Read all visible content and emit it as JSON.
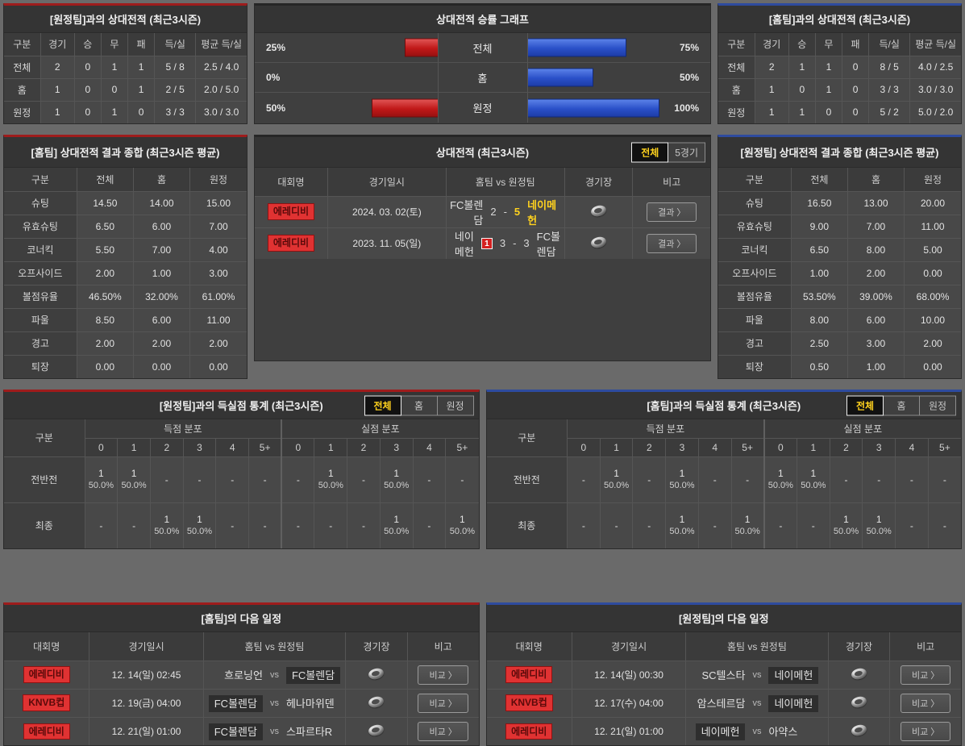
{
  "colors": {
    "accent_red": "#9e1c1c",
    "accent_blue": "#2e4b9e",
    "bar_red": "#c01818",
    "bar_blue": "#2a50c8",
    "highlight_yellow": "#ffd21e",
    "league_badge_red": "#e03232"
  },
  "labels": {
    "vs": "vs",
    "chevron": "〉",
    "empty": "-"
  },
  "chart_data": {
    "type": "bar",
    "title": "상대전적 승률 그래프",
    "categories": [
      "전체",
      "홈",
      "원정"
    ],
    "series": [
      {
        "name": "red-left-winrate",
        "values": [
          25,
          0,
          50
        ]
      },
      {
        "name": "blue-right-winrate",
        "values": [
          75,
          50,
          100
        ]
      }
    ],
    "unit": "%",
    "xlim": [
      0,
      100
    ],
    "legend": "none",
    "grid": false
  },
  "h2h_away": {
    "title": "[원정팀]과의 상대전적 (최근3시즌)",
    "columns": [
      "구분",
      "경기",
      "승",
      "무",
      "패",
      "득/실",
      "평균 득/실"
    ],
    "rows": [
      [
        "전체",
        "2",
        "0",
        "1",
        "1",
        "5 / 8",
        "2.5 / 4.0"
      ],
      [
        "홈",
        "1",
        "0",
        "0",
        "1",
        "2 / 5",
        "2.0 / 5.0"
      ],
      [
        "원정",
        "1",
        "0",
        "1",
        "0",
        "3 / 3",
        "3.0 / 3.0"
      ]
    ]
  },
  "h2h_home": {
    "title": "[홈팀]과의 상대전적 (최근3시즌)",
    "columns": [
      "구분",
      "경기",
      "승",
      "무",
      "패",
      "득/실",
      "평균 득/실"
    ],
    "rows": [
      [
        "전체",
        "2",
        "1",
        "1",
        "0",
        "8 / 5",
        "4.0 / 2.5"
      ],
      [
        "홈",
        "1",
        "0",
        "1",
        "0",
        "3 / 3",
        "3.0 / 3.0"
      ],
      [
        "원정",
        "1",
        "1",
        "0",
        "0",
        "5 / 2",
        "5.0 / 2.0"
      ]
    ]
  },
  "summary_home": {
    "title": "[홈팀] 상대전적 결과 종합 (최근3시즌 평균)",
    "columns": [
      "구분",
      "전체",
      "홈",
      "원정"
    ],
    "rows": [
      [
        "슈팅",
        "14.50",
        "14.00",
        "15.00"
      ],
      [
        "유효슈팅",
        "6.50",
        "6.00",
        "7.00"
      ],
      [
        "코너킥",
        "5.50",
        "7.00",
        "4.00"
      ],
      [
        "오프사이드",
        "2.00",
        "1.00",
        "3.00"
      ],
      [
        "볼점유율",
        "46.50%",
        "32.00%",
        "61.00%"
      ],
      [
        "파울",
        "8.50",
        "6.00",
        "11.00"
      ],
      [
        "경고",
        "2.00",
        "2.00",
        "2.00"
      ],
      [
        "퇴장",
        "0.00",
        "0.00",
        "0.00"
      ]
    ]
  },
  "summary_away": {
    "title": "[원정팀] 상대전적 결과 종합 (최근3시즌 평균)",
    "columns": [
      "구분",
      "전체",
      "홈",
      "원정"
    ],
    "rows": [
      [
        "슈팅",
        "16.50",
        "13.00",
        "20.00"
      ],
      [
        "유효슈팅",
        "9.00",
        "7.00",
        "11.00"
      ],
      [
        "코너킥",
        "6.50",
        "8.00",
        "5.00"
      ],
      [
        "오프사이드",
        "1.00",
        "2.00",
        "0.00"
      ],
      [
        "볼점유율",
        "53.50%",
        "39.00%",
        "68.00%"
      ],
      [
        "파울",
        "8.00",
        "6.00",
        "10.00"
      ],
      [
        "경고",
        "2.50",
        "3.00",
        "2.00"
      ],
      [
        "퇴장",
        "0.50",
        "1.00",
        "0.00"
      ]
    ]
  },
  "matches": {
    "title": "상대전적 (최근3시즌)",
    "tabs": [
      {
        "label": "전체",
        "active": true
      },
      {
        "label": "5경기",
        "active": false
      }
    ],
    "columns": [
      "대회명",
      "경기일시",
      "홈팀  vs  원정팀",
      "경기장",
      "비고"
    ],
    "button_label": "결과",
    "rows": [
      {
        "league": "에레디비",
        "date": "2024. 03. 02(토)",
        "home": "FC볼렌담",
        "home_card": "",
        "score_home": "2",
        "score_away": "5",
        "away": "네이메헌",
        "away_card": "",
        "winner": "away"
      },
      {
        "league": "에레디비",
        "date": "2023. 11. 05(일)",
        "home": "네이메헌",
        "home_card": "1",
        "score_home": "3",
        "score_away": "3",
        "away": "FC볼렌담",
        "away_card": "",
        "winner": ""
      }
    ]
  },
  "goals_away": {
    "title": "[원정팀]과의 득실점 통계 (최근3시즌)",
    "tabs": [
      {
        "label": "전체",
        "active": true
      },
      {
        "label": "홈",
        "active": false
      },
      {
        "label": "원정",
        "active": false
      }
    ],
    "col_label": "구분",
    "group_scored": "득점 분포",
    "group_conceded": "실점 분포",
    "subcols": [
      "0",
      "1",
      "2",
      "3",
      "4",
      "5+"
    ],
    "rows": [
      {
        "label": "전반전",
        "scored": [
          [
            "1",
            "50.0%"
          ],
          [
            "1",
            "50.0%"
          ],
          "-",
          "-",
          "-",
          "-"
        ],
        "conceded": [
          "-",
          [
            "1",
            "50.0%"
          ],
          "-",
          [
            "1",
            "50.0%"
          ],
          "-",
          "-"
        ]
      },
      {
        "label": "최종",
        "scored": [
          "-",
          "-",
          [
            "1",
            "50.0%"
          ],
          [
            "1",
            "50.0%"
          ],
          "-",
          "-"
        ],
        "conceded": [
          "-",
          "-",
          "-",
          [
            "1",
            "50.0%"
          ],
          "-",
          [
            "1",
            "50.0%"
          ]
        ]
      }
    ]
  },
  "goals_home": {
    "title": "[홈팀]과의 득실점 통계 (최근3시즌)",
    "tabs": [
      {
        "label": "전체",
        "active": true
      },
      {
        "label": "홈",
        "active": false
      },
      {
        "label": "원정",
        "active": false
      }
    ],
    "col_label": "구분",
    "group_scored": "득점 분포",
    "group_conceded": "실점 분포",
    "subcols": [
      "0",
      "1",
      "2",
      "3",
      "4",
      "5+"
    ],
    "rows": [
      {
        "label": "전반전",
        "scored": [
          "-",
          [
            "1",
            "50.0%"
          ],
          "-",
          [
            "1",
            "50.0%"
          ],
          "-",
          "-"
        ],
        "conceded": [
          [
            "1",
            "50.0%"
          ],
          [
            "1",
            "50.0%"
          ],
          "-",
          "-",
          "-",
          "-"
        ]
      },
      {
        "label": "최종",
        "scored": [
          "-",
          "-",
          "-",
          [
            "1",
            "50.0%"
          ],
          "-",
          [
            "1",
            "50.0%"
          ]
        ],
        "conceded": [
          "-",
          "-",
          [
            "1",
            "50.0%"
          ],
          [
            "1",
            "50.0%"
          ],
          "-",
          "-"
        ]
      }
    ]
  },
  "schedule_home": {
    "title": "[홈팀]의 다음 일정",
    "columns": [
      "대회명",
      "경기일시",
      "홈팀  vs  원정팀",
      "경기장",
      "비고"
    ],
    "button_label": "비교",
    "rows": [
      {
        "league": "에레디비",
        "date": "12. 14(일) 02:45",
        "home": "흐로닝언",
        "away": "FC볼렌담",
        "highlight": "away"
      },
      {
        "league": "KNVB컵",
        "date": "12. 19(금) 04:00",
        "home": "FC볼렌담",
        "away": "헤나마위덴",
        "highlight": "home"
      },
      {
        "league": "에레디비",
        "date": "12. 21(일) 01:00",
        "home": "FC볼렌담",
        "away": "스파르타R",
        "highlight": "home"
      }
    ]
  },
  "schedule_away": {
    "title": "[원정팀]의 다음 일정",
    "columns": [
      "대회명",
      "경기일시",
      "홈팀  vs  원정팀",
      "경기장",
      "비고"
    ],
    "button_label": "비교",
    "rows": [
      {
        "league": "에레디비",
        "date": "12. 14(일) 00:30",
        "home": "SC텔스타",
        "away": "네이메헌",
        "highlight": "away"
      },
      {
        "league": "KNVB컵",
        "date": "12. 17(수) 04:00",
        "home": "암스테르담",
        "away": "네이메헌",
        "highlight": "away"
      },
      {
        "league": "에레디비",
        "date": "12. 21(일) 01:00",
        "home": "네이메헌",
        "away": "아약스",
        "highlight": "home"
      }
    ]
  }
}
